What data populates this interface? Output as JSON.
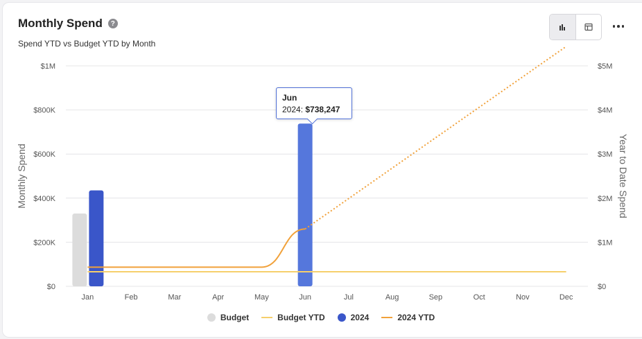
{
  "header": {
    "title": "Monthly Spend",
    "subtitle": "Spend YTD vs Budget YTD by Month",
    "help_icon": "question-icon"
  },
  "toolbar": {
    "chart_view_icon": "bar-chart-icon",
    "table_view_icon": "table-icon",
    "more_icon": "more-horizontal-icon"
  },
  "colors": {
    "budget": "#dcdcdc",
    "y2024": "#3a56c9",
    "y2024_highlight": "#5577dc",
    "budget_ytd": "#f6cf6b",
    "ytd_2024": "#f1a13a",
    "tooltip_border": "#4f6fd6"
  },
  "tooltip": {
    "title": "Jun",
    "label": "2024: ",
    "value": "$738,247"
  },
  "chart_data": {
    "type": "bar",
    "categories": [
      "Jan",
      "Feb",
      "Mar",
      "Apr",
      "May",
      "Jun",
      "Jul",
      "Aug",
      "Sep",
      "Oct",
      "Nov",
      "Dec"
    ],
    "series": [
      {
        "name": "Budget",
        "type": "bar",
        "axis": "left",
        "values": [
          330000,
          null,
          null,
          null,
          null,
          null,
          null,
          null,
          null,
          null,
          null,
          null
        ]
      },
      {
        "name": "2024",
        "type": "bar",
        "axis": "left",
        "values": [
          435000,
          null,
          null,
          null,
          null,
          738247,
          null,
          null,
          null,
          null,
          null,
          null
        ]
      },
      {
        "name": "Budget YTD",
        "type": "line",
        "axis": "right",
        "values": [
          330000,
          330000,
          330000,
          330000,
          330000,
          330000,
          330000,
          330000,
          330000,
          330000,
          330000,
          330000
        ]
      },
      {
        "name": "2024 YTD",
        "type": "line",
        "axis": "right",
        "values": [
          435000,
          435000,
          435000,
          435000,
          435000,
          1300000,
          null,
          null,
          null,
          null,
          null,
          null
        ],
        "projected": [
          null,
          null,
          null,
          null,
          null,
          1300000,
          1990000,
          2680000,
          3370000,
          4060000,
          4750000,
          5440000
        ]
      }
    ],
    "left_axis": {
      "label": "Monthly Spend",
      "ylim": [
        0,
        1000000
      ],
      "ticks": [
        "$0",
        "$200K",
        "$400K",
        "$600K",
        "$800K",
        "$1M"
      ]
    },
    "right_axis": {
      "label": "Year to Date Spend",
      "ylim": [
        0,
        5000000
      ],
      "ticks": [
        "$0",
        "$1M",
        "$2M",
        "$3M",
        "$4M",
        "$5M"
      ]
    },
    "grid": true,
    "legend": {
      "position": "bottom"
    }
  }
}
